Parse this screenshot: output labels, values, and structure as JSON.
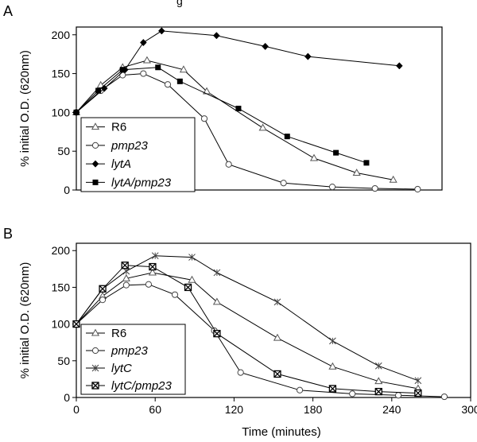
{
  "figure": {
    "caption_partial": "g"
  },
  "chart_data": [
    {
      "panel_label": "A",
      "type": "line",
      "xlim": [
        0,
        300
      ],
      "ylim": [
        0,
        210
      ],
      "xticks": [],
      "yticks": [
        0,
        50,
        100,
        150,
        200
      ],
      "ylabel": "% initial O.D. (620nm)",
      "xlabel": "",
      "grid": false,
      "legend_position": "bottom-left",
      "series": [
        {
          "name": "R6",
          "marker": "open-triangle",
          "x": [
            0,
            20,
            38,
            58,
            88,
            107,
            153,
            195,
            230,
            260
          ],
          "y": [
            100,
            135,
            158,
            167,
            155,
            127,
            80,
            41,
            22,
            13
          ]
        },
        {
          "name": "pmp23",
          "marker": "open-circle",
          "x": [
            0,
            20,
            38,
            55,
            75,
            105,
            125,
            170,
            210,
            245,
            280
          ],
          "y": [
            100,
            128,
            148,
            150,
            136,
            92,
            33,
            9,
            4,
            2,
            1
          ]
        },
        {
          "name": "lytA",
          "marker": "filled-diamond",
          "x": [
            0,
            23,
            40,
            55,
            70,
            115,
            155,
            190,
            265
          ],
          "y": [
            100,
            131,
            155,
            190,
            205,
            199,
            185,
            172,
            160
          ]
        },
        {
          "name": "lytA/pmp23",
          "marker": "filled-square",
          "x": [
            0,
            18,
            38,
            67,
            85,
            133,
            173,
            213,
            238
          ],
          "y": [
            100,
            128,
            155,
            158,
            140,
            105,
            69,
            48,
            35
          ]
        }
      ]
    },
    {
      "panel_label": "B",
      "type": "line",
      "xlim": [
        0,
        300
      ],
      "ylim": [
        0,
        210
      ],
      "xticks": [
        0,
        60,
        120,
        180,
        240,
        300
      ],
      "yticks": [
        0,
        50,
        100,
        150,
        200
      ],
      "ylabel": "% initial O.D. (620nm)",
      "xlabel": "Time (minutes)",
      "grid": false,
      "legend_position": "bottom-left",
      "series": [
        {
          "name": "R6",
          "marker": "open-triangle",
          "x": [
            0,
            20,
            38,
            58,
            88,
            107,
            153,
            195,
            230,
            260
          ],
          "y": [
            100,
            138,
            162,
            170,
            160,
            130,
            81,
            42,
            22,
            12
          ]
        },
        {
          "name": "pmp23",
          "marker": "open-circle",
          "x": [
            0,
            20,
            38,
            55,
            75,
            105,
            125,
            170,
            210,
            245,
            280
          ],
          "y": [
            100,
            133,
            153,
            154,
            140,
            91,
            34,
            10,
            5,
            3,
            1
          ]
        },
        {
          "name": "lytC",
          "marker": "asterisk",
          "x": [
            0,
            20,
            38,
            60,
            88,
            107,
            153,
            195,
            230,
            260
          ],
          "y": [
            100,
            148,
            172,
            193,
            191,
            170,
            130,
            77,
            43,
            23
          ]
        },
        {
          "name": "lytC/pmp23",
          "marker": "box-x",
          "x": [
            0,
            20,
            37,
            58,
            85,
            107,
            153,
            195,
            230,
            260
          ],
          "y": [
            100,
            148,
            180,
            178,
            150,
            87,
            32,
            12,
            8,
            6
          ]
        }
      ]
    }
  ]
}
